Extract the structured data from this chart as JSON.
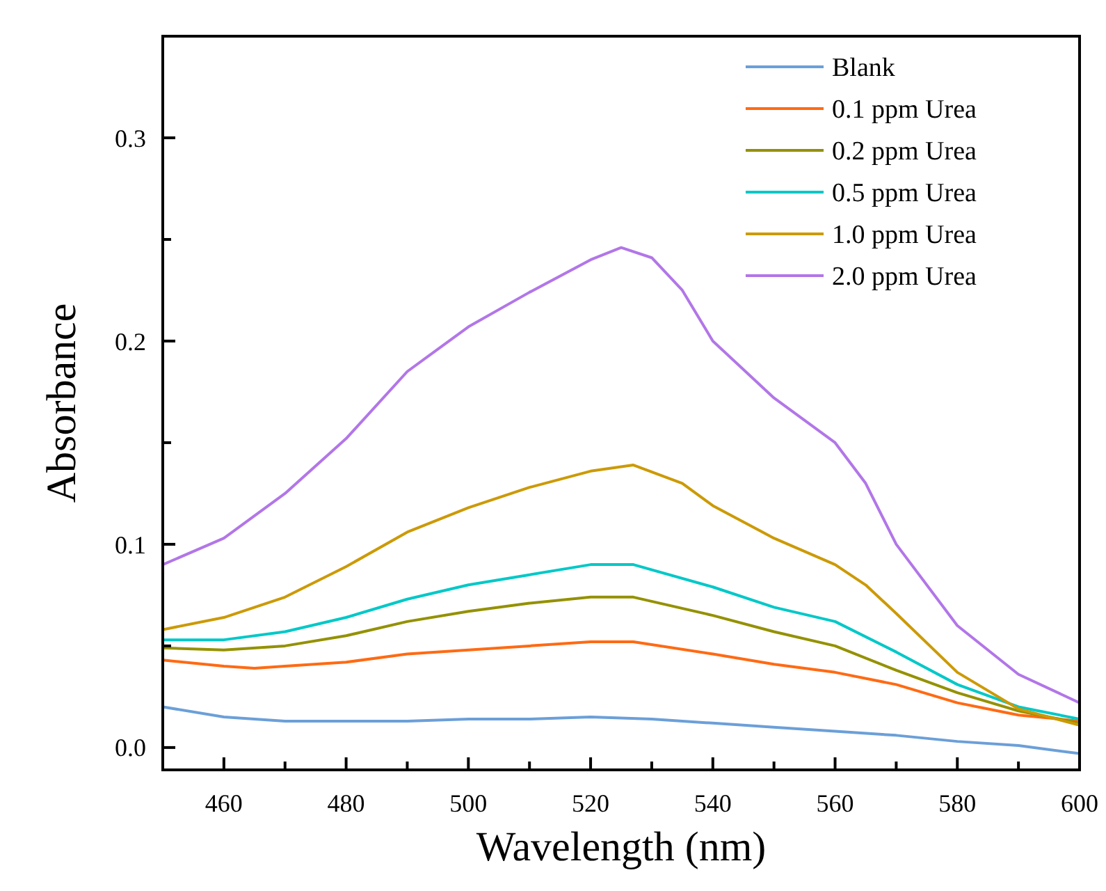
{
  "chart_data": {
    "type": "line",
    "xlabel": "Wavelength (nm)",
    "ylabel": "Absorbance",
    "xlim": [
      450,
      600
    ],
    "ylim": [
      -0.011,
      0.35
    ],
    "xticks": [
      460,
      {
        "value": 470,
        "label": null
      },
      480,
      {
        "value": 490,
        "label": null
      },
      500,
      {
        "value": 510,
        "label": null
      },
      520,
      {
        "value": 530,
        "label": null
      },
      540,
      {
        "value": 550,
        "label": null
      },
      560,
      {
        "value": 570,
        "label": null
      },
      580,
      {
        "value": 590,
        "label": null
      },
      600
    ],
    "yticks": [
      {
        "value": 0,
        "label": "0.0"
      },
      {
        "value": 0.05,
        "label": null
      },
      0.1,
      {
        "value": 0.15,
        "label": null
      },
      0.2,
      {
        "value": 0.25,
        "label": null
      },
      0.3
    ],
    "grid": false,
    "legend": "top right",
    "marker": "none",
    "line_style": "solid",
    "series": [
      {
        "name": "Blank",
        "color": "#6b9fd8",
        "x": [
          450,
          460,
          470,
          480,
          490,
          500,
          510,
          520,
          530,
          540,
          550,
          560,
          570,
          580,
          590,
          600
        ],
        "values": [
          0.02,
          0.015,
          0.013,
          0.013,
          0.013,
          0.014,
          0.014,
          0.015,
          0.014,
          0.012,
          0.01,
          0.008,
          0.006,
          0.003,
          0.001,
          -0.003
        ]
      },
      {
        "name": "0.1 ppm Urea",
        "color": "#ff6a13",
        "x": [
          450,
          460,
          465,
          470,
          480,
          490,
          500,
          510,
          520,
          527,
          540,
          550,
          560,
          570,
          580,
          590,
          600
        ],
        "values": [
          0.043,
          0.04,
          0.039,
          0.04,
          0.042,
          0.046,
          0.048,
          0.05,
          0.052,
          0.052,
          0.046,
          0.041,
          0.037,
          0.031,
          0.022,
          0.016,
          0.013
        ]
      },
      {
        "name": "0.2 ppm Urea",
        "color": "#949100",
        "x": [
          450,
          460,
          470,
          480,
          490,
          500,
          510,
          520,
          527,
          540,
          550,
          560,
          570,
          580,
          590,
          600
        ],
        "values": [
          0.049,
          0.048,
          0.05,
          0.055,
          0.062,
          0.067,
          0.071,
          0.074,
          0.074,
          0.065,
          0.057,
          0.05,
          0.038,
          0.027,
          0.018,
          0.012
        ]
      },
      {
        "name": "0.5 ppm Urea",
        "color": "#00c8c8",
        "x": [
          450,
          460,
          470,
          480,
          490,
          500,
          510,
          520,
          527,
          540,
          550,
          560,
          570,
          580,
          590,
          600
        ],
        "values": [
          0.053,
          0.053,
          0.057,
          0.064,
          0.073,
          0.08,
          0.085,
          0.09,
          0.09,
          0.079,
          0.069,
          0.062,
          0.047,
          0.031,
          0.02,
          0.014
        ]
      },
      {
        "name": "1.0 ppm Urea",
        "color": "#cc9a06",
        "x": [
          450,
          460,
          470,
          480,
          490,
          500,
          510,
          520,
          527,
          535,
          540,
          550,
          560,
          565,
          570,
          580,
          590,
          600
        ],
        "values": [
          0.058,
          0.064,
          0.074,
          0.089,
          0.106,
          0.118,
          0.128,
          0.136,
          0.139,
          0.13,
          0.119,
          0.103,
          0.09,
          0.08,
          0.066,
          0.037,
          0.019,
          0.011
        ]
      },
      {
        "name": "2.0 ppm Urea",
        "color": "#b276e8",
        "x": [
          450,
          460,
          470,
          480,
          490,
          500,
          510,
          520,
          525,
          530,
          535,
          540,
          550,
          560,
          565,
          570,
          580,
          590,
          600
        ],
        "values": [
          0.09,
          0.103,
          0.125,
          0.152,
          0.185,
          0.207,
          0.224,
          0.24,
          0.246,
          0.241,
          0.225,
          0.2,
          0.172,
          0.15,
          0.13,
          0.1,
          0.06,
          0.036,
          0.022
        ]
      }
    ]
  }
}
